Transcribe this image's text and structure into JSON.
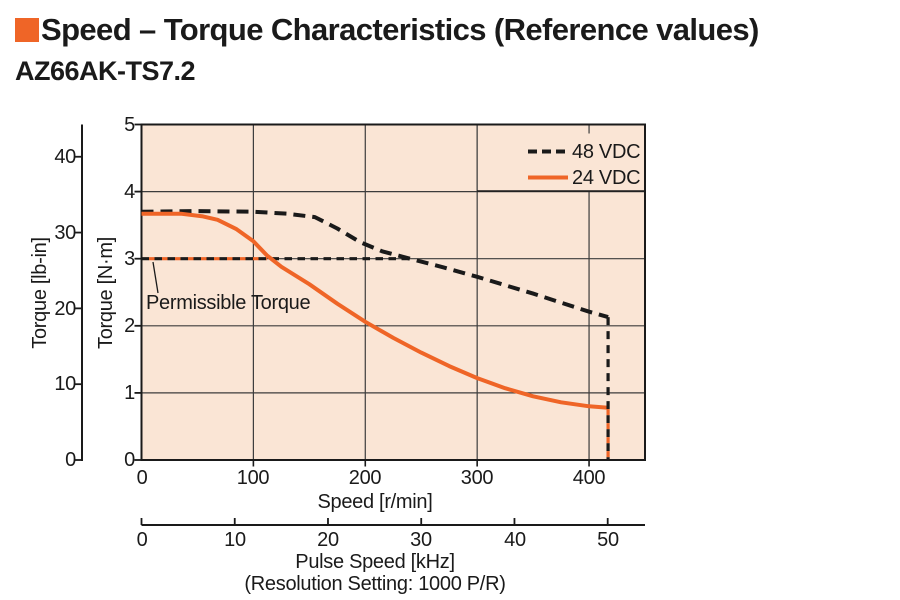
{
  "header": {
    "title": "Speed – Torque Characteristics (Reference values)",
    "model": "AZ66AK-TS7.2"
  },
  "colors": {
    "accent_orange": "#ef6527",
    "line_black": "#1a1a1a",
    "grid": "#3c3c3c",
    "plot_background": "#fae5d5",
    "page_background": "#ffffff"
  },
  "chart_data": {
    "type": "line",
    "title": "Speed – Torque Characteristics (Reference values)",
    "grid": true,
    "legend_position": "top-right-inside",
    "plot_bg": "#fae5d5",
    "x_axis": {
      "label": "Speed [r/min]",
      "min": 0,
      "max": 450,
      "ticks": [
        0,
        100,
        200,
        300,
        400
      ]
    },
    "y_axis": {
      "label": "Torque [N·m]",
      "min": 0,
      "max": 5,
      "ticks": [
        0,
        1,
        2,
        3,
        4,
        5
      ]
    },
    "y2_axis": {
      "label": "Torque [lb-in]",
      "ticks": [
        0,
        10,
        20,
        30,
        40
      ],
      "lbin_per_nm": 8.8507
    },
    "pulse_axis": {
      "label": "Pulse Speed [kHz]",
      "note": "(Resolution Setting: 1000 P/R)",
      "ticks": [
        0,
        10,
        20,
        30,
        40,
        50
      ],
      "rpm_per_khz": 8.3333
    },
    "annotation": {
      "text": "Permissible Torque",
      "value_nm": 3.0
    },
    "permissible_torque_nm": 3.0,
    "cutoff_rpm": 417,
    "legend": [
      {
        "name": "48 VDC",
        "color": "#1a1a1a",
        "dash": true
      },
      {
        "name": "24 VDC",
        "color": "#ef6527",
        "dash": false
      }
    ],
    "series": [
      {
        "name": "48 VDC",
        "color": "#1a1a1a",
        "dash": true,
        "permissible_until_rpm": 240,
        "drop_to_zero_at_rpm": 417,
        "points": [
          [
            0,
            3.7
          ],
          [
            50,
            3.71
          ],
          [
            100,
            3.7
          ],
          [
            130,
            3.67
          ],
          [
            155,
            3.62
          ],
          [
            175,
            3.45
          ],
          [
            195,
            3.25
          ],
          [
            215,
            3.11
          ],
          [
            240,
            3.0
          ],
          [
            270,
            2.87
          ],
          [
            300,
            2.73
          ],
          [
            350,
            2.48
          ],
          [
            400,
            2.21
          ],
          [
            417,
            2.13
          ]
        ]
      },
      {
        "name": "24 VDC",
        "color": "#ef6527",
        "dash": false,
        "permissible_until_rpm": 112,
        "drop_to_zero_at_rpm": 417,
        "points": [
          [
            0,
            3.67
          ],
          [
            35,
            3.67
          ],
          [
            55,
            3.63
          ],
          [
            68,
            3.58
          ],
          [
            85,
            3.44
          ],
          [
            100,
            3.26
          ],
          [
            112,
            3.05
          ],
          [
            125,
            2.88
          ],
          [
            150,
            2.62
          ],
          [
            175,
            2.33
          ],
          [
            200,
            2.06
          ],
          [
            225,
            1.82
          ],
          [
            250,
            1.6
          ],
          [
            275,
            1.4
          ],
          [
            300,
            1.22
          ],
          [
            325,
            1.07
          ],
          [
            350,
            0.95
          ],
          [
            375,
            0.86
          ],
          [
            400,
            0.8
          ],
          [
            417,
            0.78
          ]
        ]
      }
    ]
  }
}
